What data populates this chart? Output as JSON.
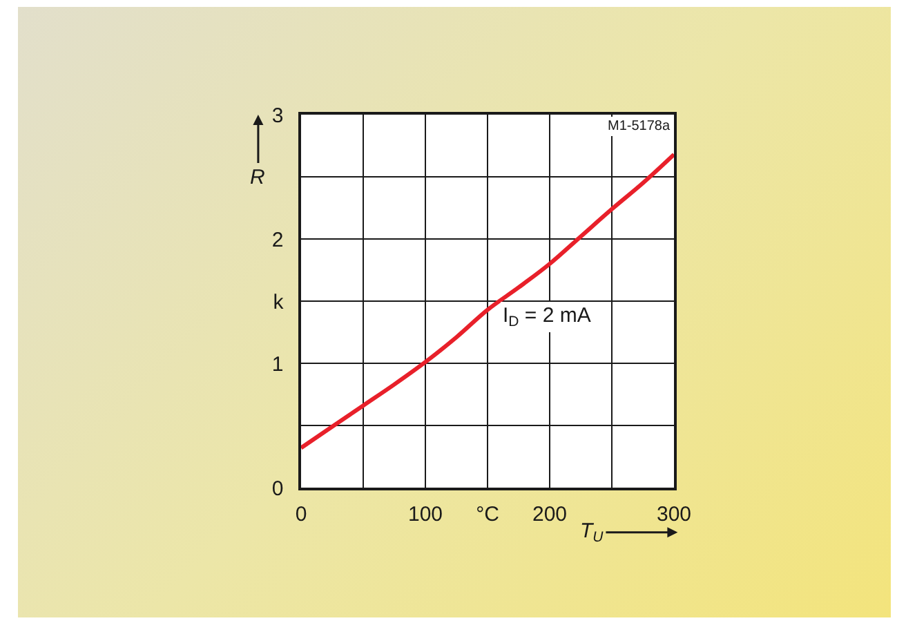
{
  "chart_data": {
    "type": "line",
    "xlabel": "T$_{U}$",
    "ylabel": "R",
    "x": [
      0,
      25,
      50,
      75,
      100,
      125,
      150,
      175,
      200,
      225,
      250,
      275,
      300
    ],
    "series": [
      {
        "color": "#e8202a",
        "values": [
          0.32,
          0.49,
          0.66,
          0.83,
          1.01,
          1.21,
          1.43,
          1.61,
          1.8,
          2.02,
          2.24,
          2.45,
          2.68
        ]
      }
    ],
    "xlim": [
      0,
      300
    ],
    "ylim": [
      0,
      3
    ],
    "xticks": [
      0,
      {
        "value": 50,
        "label": null
      },
      100,
      {
        "value": 150,
        "label": "°C"
      },
      200,
      {
        "value": 250,
        "label": null
      },
      300
    ],
    "yticks": [
      0,
      {
        "value": 0.5,
        "label": null
      },
      1,
      {
        "value": 1.5,
        "label": "k"
      },
      2,
      {
        "value": 2.5,
        "label": null
      },
      3
    ],
    "grid": true,
    "marker": "none",
    "line_style": "solid",
    "annotations": [
      {
        "text": "I$_{D}$ = 2 mA",
        "x": 160,
        "y": 1.5
      },
      "M1-5178a"
    ]
  }
}
